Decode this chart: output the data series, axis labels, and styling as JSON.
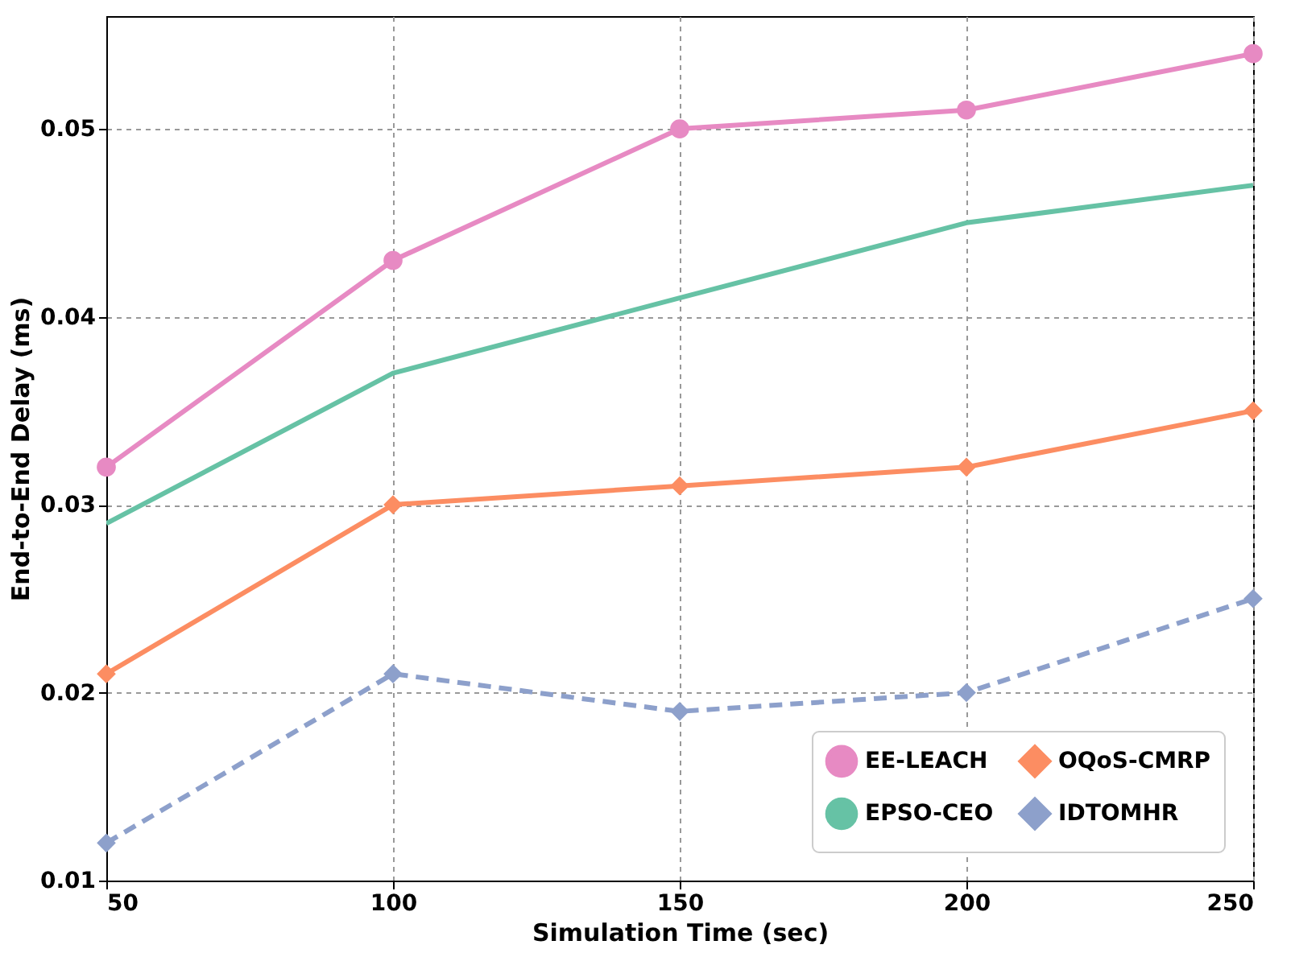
{
  "chart_data": {
    "type": "line",
    "xlabel": "Simulation Time (sec)",
    "ylabel": "End-to-End Delay (ms)",
    "x": [
      50,
      100,
      150,
      200,
      250
    ],
    "series": [
      {
        "name": "EE-LEACH",
        "color": "#e78ac3",
        "marker": "circle",
        "line_style": "solid",
        "values": [
          0.032,
          0.043,
          0.05,
          0.051,
          0.054
        ]
      },
      {
        "name": "EPSO-CEO",
        "color": "#66c2a5",
        "marker": "none",
        "line_style": "solid",
        "values": [
          0.029,
          0.037,
          0.041,
          0.045,
          0.047
        ]
      },
      {
        "name": "OQoS-CMRP",
        "color": "#fc8d62",
        "marker": "diamond",
        "line_style": "solid",
        "values": [
          0.021,
          0.03,
          0.031,
          0.032,
          0.035
        ]
      },
      {
        "name": "IDTOMHR",
        "color": "#8da0cb",
        "marker": "diamond",
        "line_style": "dashed",
        "values": [
          0.012,
          0.021,
          0.019,
          0.02,
          0.025
        ]
      }
    ],
    "xlim": [
      50,
      250
    ],
    "xticks": [
      50,
      100,
      150,
      200,
      250
    ],
    "ylim": [
      0.01,
      0.056
    ],
    "yticks": [
      0.01,
      0.02,
      0.03,
      0.04,
      0.05
    ],
    "grid": true,
    "legend": "bottom right"
  }
}
